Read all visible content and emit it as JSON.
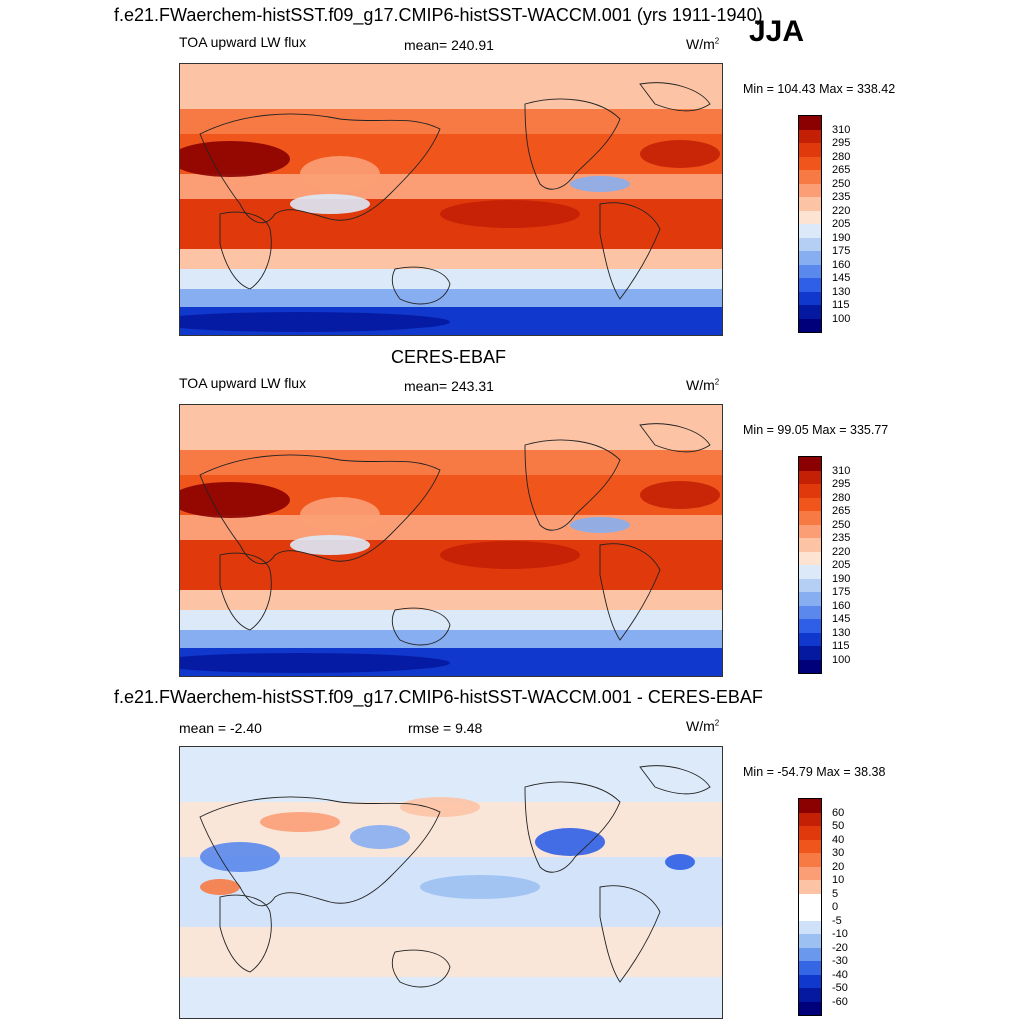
{
  "figure": {
    "season": "JJA",
    "panels": [
      {
        "title": "f.e21.FWaerchem-histSST.f09_g17.CMIP6-histSST-WACCM.001 (yrs 1911-1940)",
        "left_label": "TOA upward LW flux",
        "center_label": "mean= 240.91",
        "units_main": "W/m",
        "units_sup": "2",
        "minmax": "Min = 104.43 Max = 338.42",
        "map_kind": "abs"
      },
      {
        "title": "CERES-EBAF",
        "left_label": "TOA upward LW flux",
        "center_label": "mean= 243.31",
        "units_main": "W/m",
        "units_sup": "2",
        "minmax": "Min =  99.05 Max = 335.77",
        "map_kind": "abs2"
      },
      {
        "title": "f.e21.FWaerchem-histSST.f09_g17.CMIP6-histSST-WACCM.001 - CERES-EBAF",
        "left_label": "mean =  -2.40",
        "center_label": "rmse =   9.48",
        "units_main": "W/m",
        "units_sup": "2",
        "minmax": "Min = -54.79 Max =  38.38",
        "map_kind": "diff"
      }
    ]
  },
  "chart_data": [
    {
      "type": "heatmap",
      "title": "f.e21.FWaerchem-histSST.f09_g17.CMIP6-histSST-WACCM.001 (yrs 1911-1940)",
      "variable": "TOA upward LW flux",
      "units": "W/m2",
      "mean": 240.91,
      "min": 104.43,
      "max": 338.42,
      "colorbar_levels": [
        310,
        295,
        280,
        265,
        250,
        235,
        220,
        205,
        190,
        175,
        160,
        145,
        130,
        115,
        100
      ],
      "colorbar_colors": [
        "#8b0000",
        "#c42006",
        "#e03a0c",
        "#f0551c",
        "#f77a45",
        "#fb9e76",
        "#fcc3a4",
        "#fde4d2",
        "#dbe9f8",
        "#b4cff3",
        "#87aef0",
        "#5a88ec",
        "#2f5fe6",
        "#1038cc",
        "#0418a0",
        "#00007a"
      ]
    },
    {
      "type": "heatmap",
      "title": "CERES-EBAF",
      "variable": "TOA upward LW flux",
      "units": "W/m2",
      "mean": 243.31,
      "min": 99.05,
      "max": 335.77,
      "colorbar_levels": [
        310,
        295,
        280,
        265,
        250,
        235,
        220,
        205,
        190,
        175,
        160,
        145,
        130,
        115,
        100
      ],
      "colorbar_colors": [
        "#8b0000",
        "#c42006",
        "#e03a0c",
        "#f0551c",
        "#f77a45",
        "#fb9e76",
        "#fcc3a4",
        "#fde4d2",
        "#dbe9f8",
        "#b4cff3",
        "#87aef0",
        "#5a88ec",
        "#2f5fe6",
        "#1038cc",
        "#0418a0",
        "#00007a"
      ]
    },
    {
      "type": "heatmap",
      "title": "f.e21.FWaerchem-histSST.f09_g17.CMIP6-histSST-WACCM.001 - CERES-EBAF",
      "units": "W/m2",
      "mean": -2.4,
      "rmse": 9.48,
      "min": -54.79,
      "max": 38.38,
      "colorbar_levels": [
        60,
        50,
        40,
        30,
        20,
        10,
        5,
        0,
        -5,
        -10,
        -20,
        -30,
        -40,
        -50,
        -60
      ],
      "colorbar_colors": [
        "#8b0000",
        "#c42006",
        "#e03a0c",
        "#f0551c",
        "#f77a45",
        "#fb9e76",
        "#fcc3a4",
        "#ffffff",
        "#ffffff",
        "#cfe1f8",
        "#9cc0f2",
        "#6a98ec",
        "#3566e3",
        "#1038cc",
        "#0418a0",
        "#00007a"
      ]
    }
  ]
}
